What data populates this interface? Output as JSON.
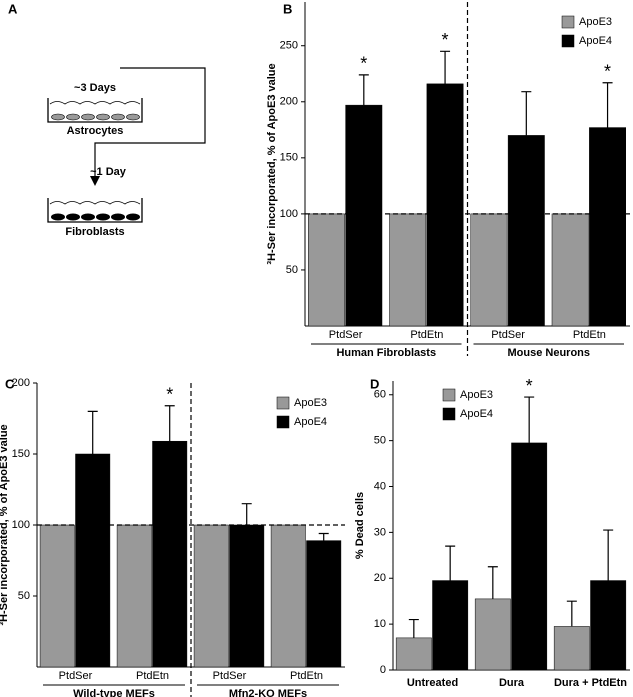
{
  "panel_a": {
    "label": "A",
    "steps": [
      "~3 Days",
      "~1 Day"
    ],
    "cells": [
      "Astrocytes",
      "Fibroblasts"
    ]
  },
  "chart_data": [
    {
      "type": "bar",
      "label": "B",
      "ylabel": "³H-Ser incorporated, % of ApoE3 value",
      "groups": [
        {
          "name": "Human Fibroblasts",
          "categories": [
            "PtdSer",
            "PtdEtn"
          ]
        },
        {
          "name": "Mouse Neurons",
          "categories": [
            "PtdSer",
            "PtdEtn"
          ]
        }
      ],
      "series": [
        {
          "name": "ApoE3",
          "color": "#999999",
          "values": [
            100,
            100,
            100,
            100
          ]
        },
        {
          "name": "ApoE4",
          "color": "#000000",
          "values": [
            197,
            216,
            170,
            177
          ],
          "errors": [
            27,
            29,
            39,
            40
          ]
        }
      ],
      "significance": [
        "*",
        "*",
        null,
        "*"
      ],
      "reference_line": 100,
      "ylim": [
        0,
        289
      ],
      "yticks": [
        50,
        100,
        150,
        200,
        250
      ],
      "legend": "upper right"
    },
    {
      "type": "bar",
      "label": "C",
      "ylabel": "³H-Ser incorporated, % of ApoE3 value",
      "groups": [
        {
          "name": "Wild-type MEFs",
          "categories": [
            "PtdSer",
            "PtdEtn"
          ]
        },
        {
          "name": "Mfn2-KO MEFs",
          "categories": [
            "PtdSer",
            "PtdEtn"
          ]
        }
      ],
      "series": [
        {
          "name": "ApoE3",
          "color": "#999999",
          "values": [
            100,
            100,
            100,
            100
          ]
        },
        {
          "name": "ApoE4",
          "color": "#000000",
          "values": [
            150,
            159,
            100,
            89
          ],
          "errors": [
            30,
            25,
            15,
            5
          ]
        }
      ],
      "significance": [
        null,
        "*",
        null,
        null
      ],
      "reference_line": 100,
      "ylim": [
        0,
        200
      ],
      "yticks": [
        50,
        100,
        150,
        200
      ],
      "legend": "upper right"
    },
    {
      "type": "bar",
      "label": "D",
      "ylabel": "% Dead cells",
      "categories": [
        "Untreated",
        "Dura",
        "Dura + PtdEtn"
      ],
      "series": [
        {
          "name": "ApoE3",
          "color": "#999999",
          "values": [
            7,
            15.5,
            9.5
          ],
          "errors": [
            4,
            7,
            5.5
          ]
        },
        {
          "name": "ApoE4",
          "color": "#000000",
          "values": [
            19.5,
            49.5,
            19.5
          ],
          "errors": [
            7.5,
            10,
            11
          ]
        }
      ],
      "significance": [
        null,
        "*",
        null
      ],
      "ylim": [
        0,
        63
      ],
      "yticks": [
        0,
        10,
        20,
        30,
        40,
        50,
        60
      ],
      "legend": "upper center"
    }
  ]
}
